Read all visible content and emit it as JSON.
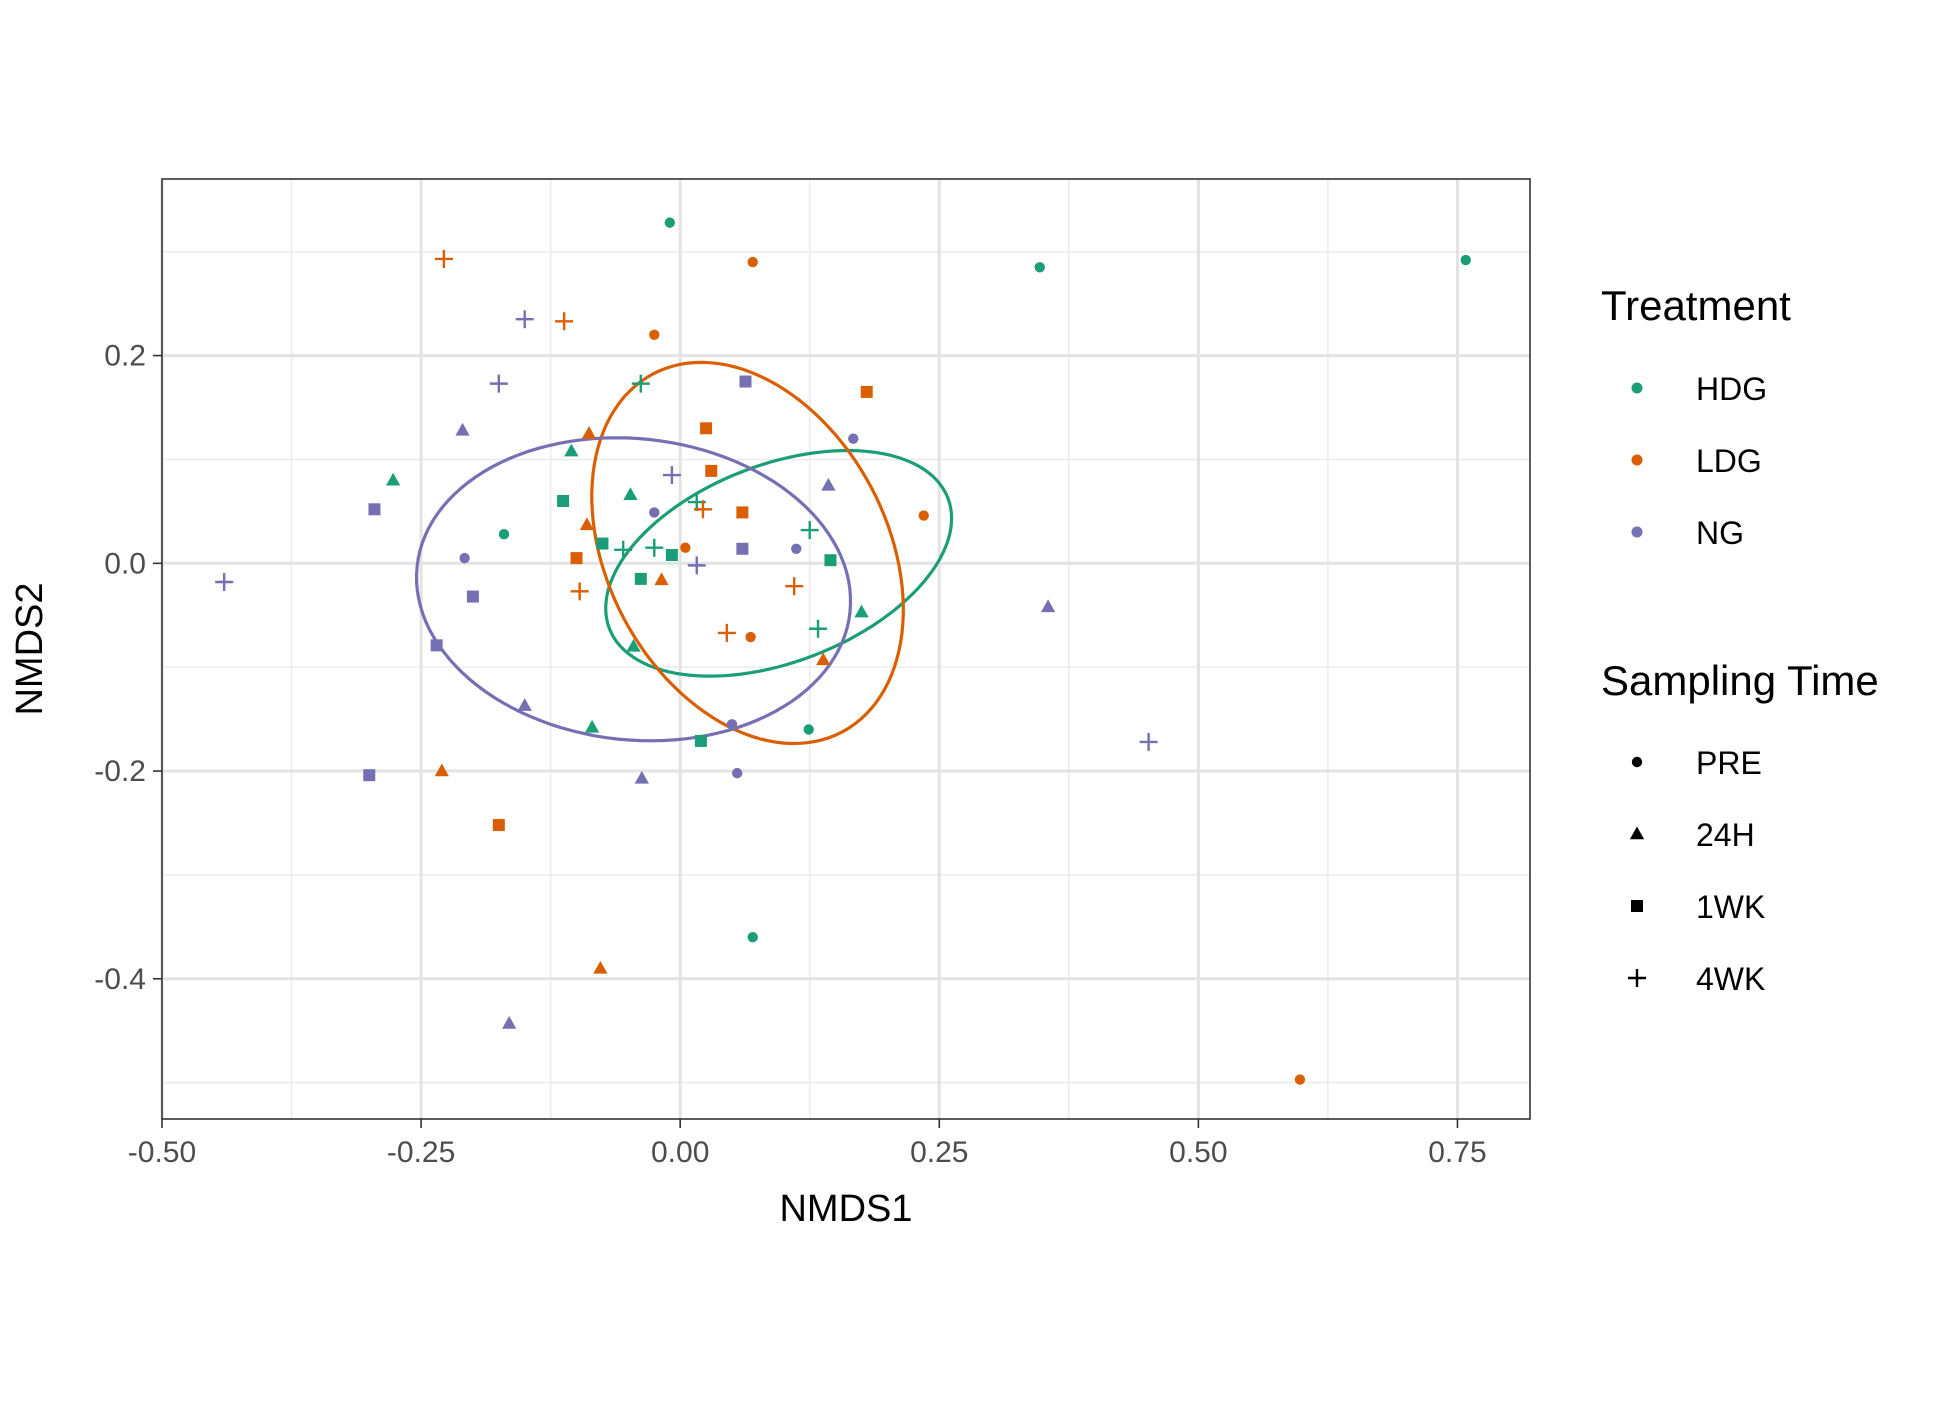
{
  "chart_data": {
    "type": "scatter",
    "xlabel": "NMDS1",
    "ylabel": "NMDS2",
    "xlim": [
      -0.5,
      0.82
    ],
    "ylim": [
      -0.535,
      0.37
    ],
    "x_ticks": [
      -0.5,
      -0.25,
      0.0,
      0.25,
      0.5,
      0.75
    ],
    "x_tick_labels": [
      "-0.50",
      "-0.25",
      "0.00",
      "0.25",
      "0.50",
      "0.75"
    ],
    "y_ticks": [
      -0.4,
      -0.2,
      0.0,
      0.2
    ],
    "y_tick_labels": [
      "-0.4",
      "-0.2",
      "0.0",
      "0.2"
    ],
    "x_minor": [
      -0.375,
      -0.125,
      0.125,
      0.375,
      0.625
    ],
    "y_minor": [
      -0.5,
      -0.3,
      -0.1,
      0.1,
      0.3
    ],
    "grid": true,
    "legend": {
      "position": "right",
      "treatment_title": "Treatment",
      "time_title": "Sampling Time",
      "treatments": [
        {
          "name": "HDG",
          "color": "#1b9e77"
        },
        {
          "name": "LDG",
          "color": "#d95f02"
        },
        {
          "name": "NG",
          "color": "#7570b3"
        }
      ],
      "times": [
        {
          "name": "PRE",
          "shape": "circle"
        },
        {
          "name": "24H",
          "shape": "triangle"
        },
        {
          "name": "1WK",
          "shape": "square"
        },
        {
          "name": "4WK",
          "shape": "plus"
        }
      ]
    },
    "ellipses": [
      {
        "group": "HDG",
        "cx": 0.095,
        "cy": 0.0,
        "rx": 0.175,
        "ry": 0.095,
        "angle_deg": 21
      },
      {
        "group": "LDG",
        "cx": 0.065,
        "cy": 0.01,
        "rx": 0.195,
        "ry": 0.135,
        "angle_deg": 118
      },
      {
        "group": "NG",
        "cx": -0.045,
        "cy": -0.025,
        "rx": 0.21,
        "ry": 0.145,
        "angle_deg": -6
      }
    ],
    "series": [
      {
        "group": "HDG",
        "time": "PRE",
        "points": [
          [
            -0.01,
            0.328
          ],
          [
            0.347,
            0.285
          ],
          [
            0.758,
            0.292
          ],
          [
            -0.17,
            0.028
          ],
          [
            0.124,
            -0.16
          ],
          [
            0.07,
            -0.36
          ]
        ]
      },
      {
        "group": "HDG",
        "time": "24H",
        "points": [
          [
            -0.277,
            0.08
          ],
          [
            -0.105,
            0.108
          ],
          [
            -0.048,
            0.066
          ],
          [
            0.175,
            -0.047
          ],
          [
            -0.045,
            -0.08
          ],
          [
            -0.085,
            -0.158
          ]
        ]
      },
      {
        "group": "HDG",
        "time": "1WK",
        "points": [
          [
            -0.113,
            0.06
          ],
          [
            -0.075,
            0.019
          ],
          [
            -0.008,
            0.008
          ],
          [
            0.145,
            0.003
          ],
          [
            -0.038,
            -0.015
          ],
          [
            0.02,
            -0.171
          ]
        ]
      },
      {
        "group": "HDG",
        "time": "4WK",
        "points": [
          [
            -0.038,
            0.173
          ],
          [
            0.016,
            0.059
          ],
          [
            -0.055,
            0.013
          ],
          [
            -0.025,
            0.015
          ],
          [
            0.125,
            0.032
          ],
          [
            0.133,
            -0.063
          ]
        ]
      },
      {
        "group": "LDG",
        "time": "PRE",
        "points": [
          [
            0.07,
            0.29
          ],
          [
            -0.025,
            0.22
          ],
          [
            0.235,
            0.046
          ],
          [
            0.005,
            0.015
          ],
          [
            0.068,
            -0.071
          ],
          [
            0.598,
            -0.497
          ]
        ]
      },
      {
        "group": "LDG",
        "time": "24H",
        "points": [
          [
            -0.088,
            0.125
          ],
          [
            -0.09,
            0.037
          ],
          [
            -0.018,
            -0.016
          ],
          [
            0.138,
            -0.093
          ],
          [
            -0.23,
            -0.2
          ],
          [
            -0.077,
            -0.39
          ]
        ]
      },
      {
        "group": "LDG",
        "time": "1WK",
        "points": [
          [
            0.18,
            0.165
          ],
          [
            0.025,
            0.13
          ],
          [
            0.03,
            0.089
          ],
          [
            0.06,
            0.049
          ],
          [
            -0.1,
            0.005
          ],
          [
            -0.175,
            -0.252
          ]
        ]
      },
      {
        "group": "LDG",
        "time": "4WK",
        "points": [
          [
            -0.228,
            0.293
          ],
          [
            -0.112,
            0.233
          ],
          [
            0.022,
            0.052
          ],
          [
            0.11,
            -0.022
          ],
          [
            -0.097,
            -0.027
          ],
          [
            0.045,
            -0.067
          ]
        ]
      },
      {
        "group": "NG",
        "time": "PRE",
        "points": [
          [
            0.167,
            0.12
          ],
          [
            -0.025,
            0.049
          ],
          [
            0.112,
            0.014
          ],
          [
            -0.208,
            0.005
          ],
          [
            0.05,
            -0.155
          ],
          [
            0.055,
            -0.202
          ]
        ]
      },
      {
        "group": "NG",
        "time": "24H",
        "points": [
          [
            -0.21,
            0.128
          ],
          [
            0.143,
            0.075
          ],
          [
            0.355,
            -0.042
          ],
          [
            -0.15,
            -0.137
          ],
          [
            -0.037,
            -0.207
          ],
          [
            -0.165,
            -0.443
          ]
        ]
      },
      {
        "group": "NG",
        "time": "1WK",
        "points": [
          [
            0.063,
            0.175
          ],
          [
            -0.295,
            0.052
          ],
          [
            0.06,
            0.014
          ],
          [
            -0.2,
            -0.032
          ],
          [
            -0.235,
            -0.079
          ],
          [
            -0.3,
            -0.204
          ]
        ]
      },
      {
        "group": "NG",
        "time": "4WK",
        "points": [
          [
            -0.15,
            0.235
          ],
          [
            -0.175,
            0.173
          ],
          [
            -0.008,
            0.085
          ],
          [
            0.016,
            -0.002
          ],
          [
            -0.44,
            -0.018
          ],
          [
            0.452,
            -0.172
          ]
        ]
      }
    ]
  }
}
